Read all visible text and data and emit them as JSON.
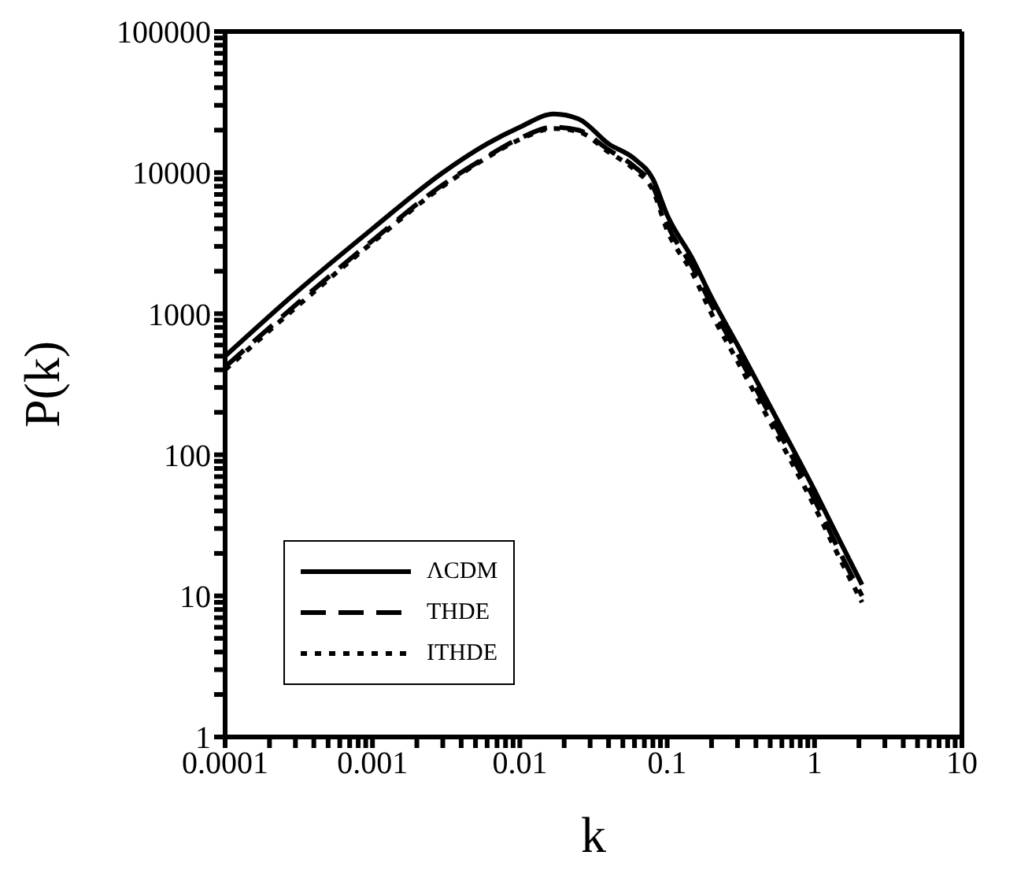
{
  "chart_data": {
    "type": "line",
    "xlabel": "k",
    "ylabel": "P(k)",
    "log": "xy",
    "legend": "bottom left",
    "xlim": [
      0.0001,
      10
    ],
    "ylim": [
      1,
      100000
    ],
    "xticks": [
      {
        "value": 0.0001,
        "label": "0.0001"
      },
      {
        "value": 0.0002,
        "label": null
      },
      {
        "value": 0.0003,
        "label": null
      },
      {
        "value": 0.0004,
        "label": null
      },
      {
        "value": 0.0005,
        "label": null
      },
      {
        "value": 0.0006,
        "label": null
      },
      {
        "value": 0.0007,
        "label": null
      },
      {
        "value": 0.0008,
        "label": null
      },
      {
        "value": 0.0009,
        "label": null
      },
      {
        "value": 0.001,
        "label": "0.001"
      },
      {
        "value": 0.002,
        "label": null
      },
      {
        "value": 0.003,
        "label": null
      },
      {
        "value": 0.004,
        "label": null
      },
      {
        "value": 0.005,
        "label": null
      },
      {
        "value": 0.006,
        "label": null
      },
      {
        "value": 0.007,
        "label": null
      },
      {
        "value": 0.008,
        "label": null
      },
      {
        "value": 0.009,
        "label": null
      },
      {
        "value": 0.01,
        "label": "0.01"
      },
      {
        "value": 0.02,
        "label": null
      },
      {
        "value": 0.03,
        "label": null
      },
      {
        "value": 0.04,
        "label": null
      },
      {
        "value": 0.05,
        "label": null
      },
      {
        "value": 0.06,
        "label": null
      },
      {
        "value": 0.07,
        "label": null
      },
      {
        "value": 0.08,
        "label": null
      },
      {
        "value": 0.09,
        "label": null
      },
      {
        "value": 0.1,
        "label": "0.1"
      },
      {
        "value": 0.2,
        "label": null
      },
      {
        "value": 0.3,
        "label": null
      },
      {
        "value": 0.4,
        "label": null
      },
      {
        "value": 0.5,
        "label": null
      },
      {
        "value": 0.6,
        "label": null
      },
      {
        "value": 0.7,
        "label": null
      },
      {
        "value": 0.8,
        "label": null
      },
      {
        "value": 0.9,
        "label": null
      },
      {
        "value": 1,
        "label": "1"
      },
      {
        "value": 2,
        "label": null
      },
      {
        "value": 3,
        "label": null
      },
      {
        "value": 4,
        "label": null
      },
      {
        "value": 5,
        "label": null
      },
      {
        "value": 6,
        "label": null
      },
      {
        "value": 7,
        "label": null
      },
      {
        "value": 8,
        "label": null
      },
      {
        "value": 9,
        "label": null
      },
      {
        "value": 10,
        "label": "10"
      }
    ],
    "yticks": [
      1,
      {
        "value": 2,
        "label": null
      },
      {
        "value": 3,
        "label": null
      },
      {
        "value": 4,
        "label": null
      },
      {
        "value": 5,
        "label": null
      },
      {
        "value": 6,
        "label": null
      },
      {
        "value": 7,
        "label": null
      },
      {
        "value": 8,
        "label": null
      },
      {
        "value": 9,
        "label": null
      },
      10,
      {
        "value": 20,
        "label": null
      },
      {
        "value": 30,
        "label": null
      },
      {
        "value": 40,
        "label": null
      },
      {
        "value": 50,
        "label": null
      },
      {
        "value": 60,
        "label": null
      },
      {
        "value": 70,
        "label": null
      },
      {
        "value": 80,
        "label": null
      },
      {
        "value": 90,
        "label": null
      },
      100,
      {
        "value": 200,
        "label": null
      },
      {
        "value": 300,
        "label": null
      },
      {
        "value": 400,
        "label": null
      },
      {
        "value": 500,
        "label": null
      },
      {
        "value": 600,
        "label": null
      },
      {
        "value": 700,
        "label": null
      },
      {
        "value": 800,
        "label": null
      },
      {
        "value": 900,
        "label": null
      },
      1000,
      {
        "value": 2000,
        "label": null
      },
      {
        "value": 3000,
        "label": null
      },
      {
        "value": 4000,
        "label": null
      },
      {
        "value": 5000,
        "label": null
      },
      {
        "value": 6000,
        "label": null
      },
      {
        "value": 7000,
        "label": null
      },
      {
        "value": 8000,
        "label": null
      },
      {
        "value": 9000,
        "label": null
      },
      10000,
      {
        "value": 20000,
        "label": null
      },
      {
        "value": 30000,
        "label": null
      },
      {
        "value": 40000,
        "label": null
      },
      {
        "value": 50000,
        "label": null
      },
      {
        "value": 60000,
        "label": null
      },
      {
        "value": 70000,
        "label": null
      },
      {
        "value": 80000,
        "label": null
      },
      {
        "value": 90000,
        "label": null
      },
      100000
    ],
    "x": [
      0.0001,
      0.0003,
      0.001,
      0.003,
      0.006,
      0.01,
      0.017,
      0.025,
      0.04,
      0.06,
      0.08,
      0.1,
      0.15,
      0.2,
      0.3,
      0.5,
      1,
      1.5,
      2.1
    ],
    "series": [
      {
        "name": "ΛCDM",
        "color": "#000000",
        "line_style": "solid",
        "values": [
          500,
          1400,
          4000,
          10000,
          16000,
          21000,
          26000,
          24000,
          16000,
          12500,
          9000,
          5000,
          2400,
          1300,
          600,
          220,
          56,
          24,
          12
        ]
      },
      {
        "name": "THDE",
        "color": "#000000",
        "line_style": "dashed",
        "values": [
          420,
          1150,
          3300,
          8200,
          13000,
          17500,
          21000,
          20000,
          14500,
          11000,
          8000,
          4300,
          2100,
          1150,
          520,
          190,
          48,
          20,
          10
        ]
      },
      {
        "name": "ITHDE",
        "color": "#000000",
        "line_style": "dotted",
        "values": [
          400,
          1100,
          3200,
          8000,
          12800,
          17200,
          20500,
          19500,
          14000,
          10500,
          7500,
          3900,
          1900,
          1000,
          460,
          170,
          43,
          18,
          9
        ]
      }
    ]
  }
}
